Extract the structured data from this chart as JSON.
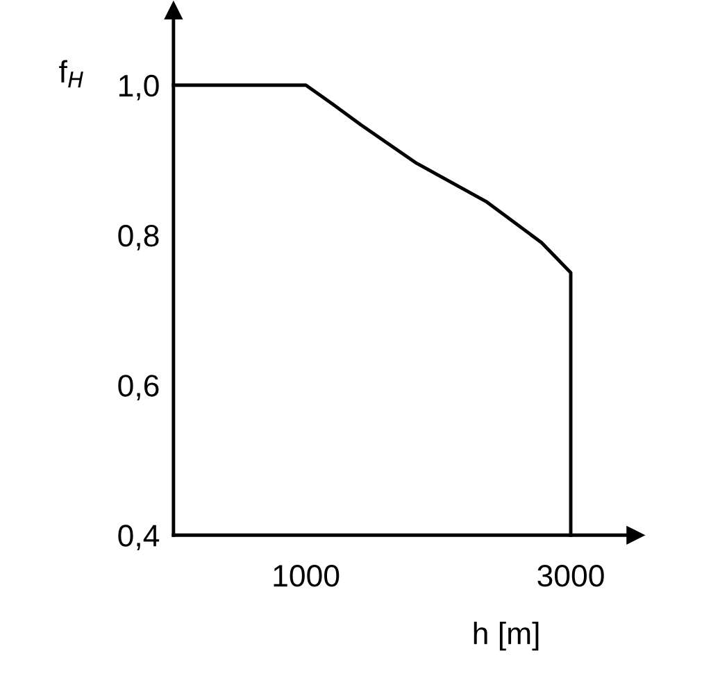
{
  "chart_data": {
    "type": "line",
    "xlabel": "h [m]",
    "ylabel": "f$_{H}$",
    "x": [
      0,
      1000,
      1200,
      1416,
      1835,
      2360,
      2780,
      3000,
      3000
    ],
    "series": [
      {
        "color": "#000000",
        "values": [
          1.0,
          1.0,
          0.975,
          0.947,
          0.896,
          0.845,
          0.79,
          0.75,
          0.4
        ]
      }
    ],
    "xlim": [
      0,
      3490
    ],
    "ylim": [
      0.4,
      1.1
    ],
    "xticks": [
      1000,
      3000
    ],
    "yticks": [
      {
        "value": 0.4,
        "label": "0,4"
      },
      {
        "value": 0.6,
        "label": "0,6"
      },
      {
        "value": 0.8,
        "label": "0,8"
      },
      {
        "value": 1.0,
        "label": "1,0"
      }
    ],
    "grid": false,
    "legend": false,
    "marker": "none",
    "line_style": "solid"
  }
}
